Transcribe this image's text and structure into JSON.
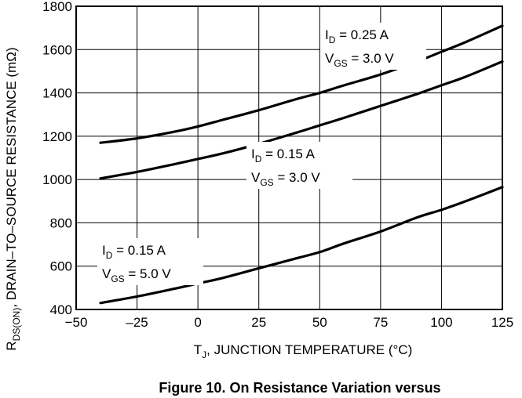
{
  "chart_data": {
    "type": "line",
    "title": "",
    "caption": "Figure 10. On Resistance Variation versus",
    "xlabel": {
      "main": "T",
      "sub": "J",
      "rest": ", JUNCTION TEMPERATURE (°C)"
    },
    "ylabel": {
      "main": "R",
      "sub": "DS(ON)",
      "rest": ", DRAIN–TO–SOURCE RESISTANCE (mΩ)"
    },
    "xlim": [
      -50,
      125
    ],
    "ylim": [
      400,
      1800
    ],
    "xticks": [
      -50,
      -25,
      0,
      25,
      50,
      75,
      100,
      125
    ],
    "xtick_labels": [
      "−50",
      "–25",
      "0",
      "25",
      "50",
      "75",
      "100",
      "125"
    ],
    "yticks": [
      400,
      600,
      800,
      1000,
      1200,
      1400,
      1600,
      1800
    ],
    "ytick_labels": [
      "400",
      "600",
      "800",
      "1000",
      "1200",
      "1400",
      "1600",
      "1800"
    ],
    "grid": true,
    "series": [
      {
        "x": [
          -40,
          -25,
          -10,
          0,
          10,
          25,
          40,
          50,
          60,
          75,
          90,
          100,
          110,
          125
        ],
        "y": [
          1170,
          1190,
          1220,
          1245,
          1275,
          1320,
          1370,
          1400,
          1435,
          1485,
          1545,
          1590,
          1635,
          1710
        ],
        "annotation": {
          "line1": {
            "main": "I",
            "sub": "D",
            "rest": " = 0.25 A"
          },
          "line2": {
            "main": "V",
            "sub": "GS",
            "rest": " = 3.0 V"
          }
        }
      },
      {
        "x": [
          -40,
          -25,
          -10,
          0,
          10,
          25,
          40,
          50,
          60,
          75,
          90,
          100,
          110,
          125
        ],
        "y": [
          1005,
          1035,
          1070,
          1095,
          1120,
          1165,
          1215,
          1250,
          1285,
          1340,
          1395,
          1435,
          1475,
          1545
        ],
        "annotation": {
          "line1": {
            "main": "I",
            "sub": "D",
            "rest": " = 0.15 A"
          },
          "line2": {
            "main": "V",
            "sub": "GS",
            "rest": " = 3.0 V"
          }
        }
      },
      {
        "x": [
          -40,
          -25,
          -10,
          0,
          10,
          25,
          40,
          50,
          60,
          75,
          90,
          100,
          110,
          125
        ],
        "y": [
          430,
          460,
          495,
          520,
          545,
          590,
          635,
          665,
          705,
          760,
          825,
          860,
          900,
          965
        ],
        "annotation": {
          "line1": {
            "main": "I",
            "sub": "D",
            "rest": " = 0.15 A"
          },
          "line2": {
            "main": "V",
            "sub": "GS",
            "rest": " = 5.0 V"
          }
        }
      }
    ]
  }
}
